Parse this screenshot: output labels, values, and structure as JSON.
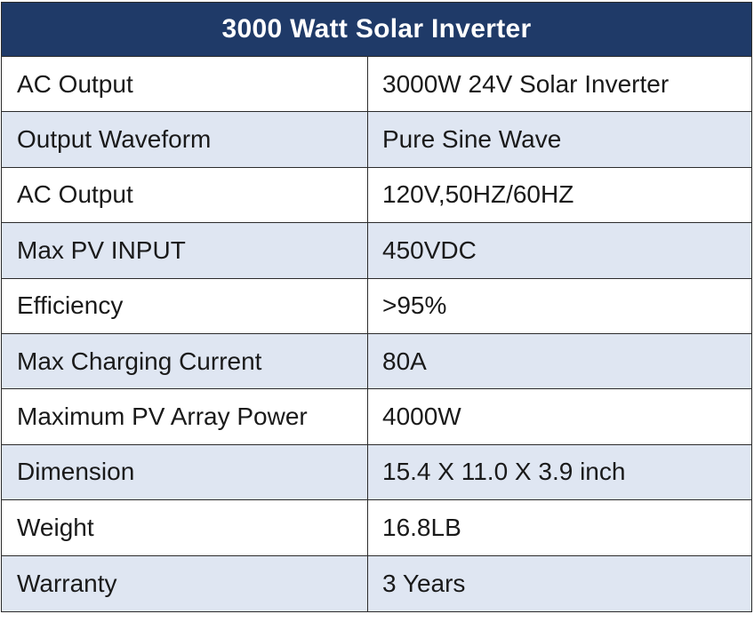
{
  "title": "3000 Watt Solar Inverter",
  "colors": {
    "header_bg": "#1f3a68",
    "header_text": "#ffffff",
    "row_alt_bg": "#dfe6f2",
    "row_bg": "#ffffff",
    "border": "#2b2b2b"
  },
  "rows": [
    {
      "label": "AC Output",
      "value": "3000W 24V Solar Inverter"
    },
    {
      "label": "Output Waveform",
      "value": "Pure Sine Wave"
    },
    {
      "label": "AC Output",
      "value": "120V,50HZ/60HZ"
    },
    {
      "label": "Max PV INPUT",
      "value": "450VDC"
    },
    {
      "label": "Efficiency",
      "value": ">95%"
    },
    {
      "label": "Max Charging Current",
      "value": "80A"
    },
    {
      "label": "Maximum PV Array Power",
      "value": "4000W"
    },
    {
      "label": "Dimension",
      "value": "15.4 X 11.0 X 3.9 inch"
    },
    {
      "label": "Weight",
      "value": "16.8LB"
    },
    {
      "label": "Warranty",
      "value": "3 Years"
    }
  ]
}
